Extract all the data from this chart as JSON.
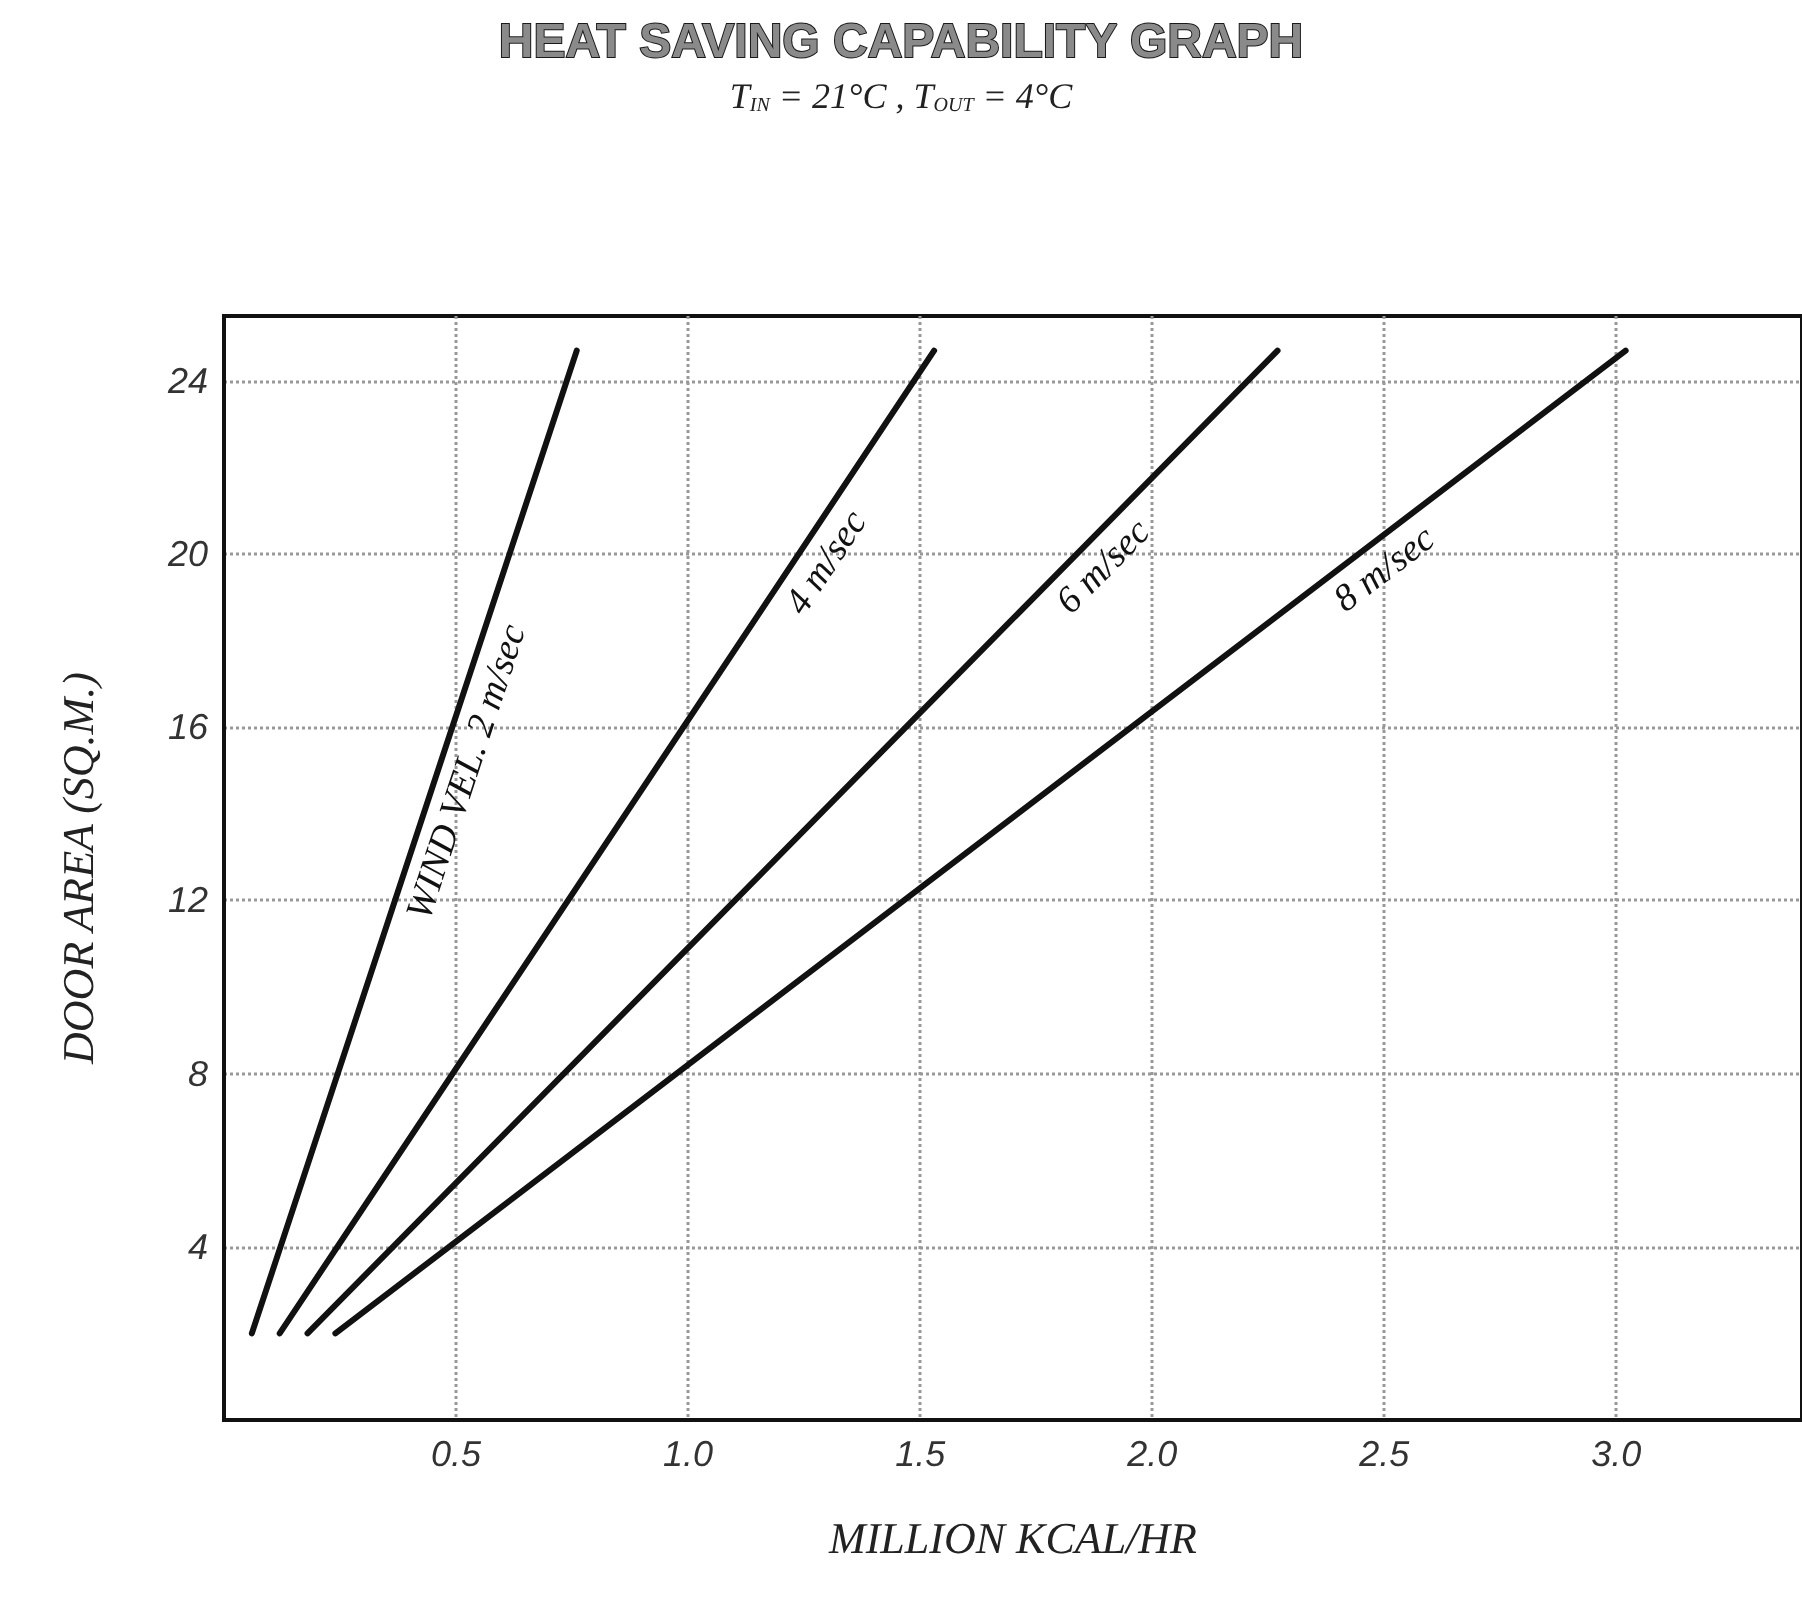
{
  "chart_data": {
    "type": "line",
    "title": "HEAT SAVING CAPABILITY GRAPH",
    "subtitle": "T$_{IN}$ = 21°C , T$_{OUT}$ = 4°C",
    "xlabel": "MILLION KCAL/HR",
    "ylabel": "DOOR AREA (SQ.M.)",
    "series": [
      {
        "name": "WIND VEL. 2 m/sec",
        "color": "#111111",
        "x": [
          0.06,
          0.76
        ],
        "values": [
          2,
          24.7
        ]
      },
      {
        "name": "4 m/sec",
        "color": "#111111",
        "x": [
          0.12,
          1.53
        ],
        "values": [
          2,
          24.7
        ]
      },
      {
        "name": "6 m/sec",
        "color": "#111111",
        "x": [
          0.18,
          2.27
        ],
        "values": [
          2,
          24.7
        ]
      },
      {
        "name": "8 m/sec",
        "color": "#111111",
        "x": [
          0.24,
          3.02
        ],
        "values": [
          2,
          24.7
        ]
      }
    ],
    "xlim": [
      0,
      3.4
    ],
    "ylim": [
      0,
      25.5
    ],
    "xticks": [
      0.5,
      {
        "value": 1,
        "label": "1.0"
      },
      1.5,
      {
        "value": 2,
        "label": "2.0"
      },
      2.5,
      {
        "value": 3,
        "label": "3.0"
      }
    ],
    "yticks": [
      4,
      8,
      12,
      16,
      20,
      24
    ],
    "grid": true,
    "marker": "none",
    "line_style": "solid"
  }
}
